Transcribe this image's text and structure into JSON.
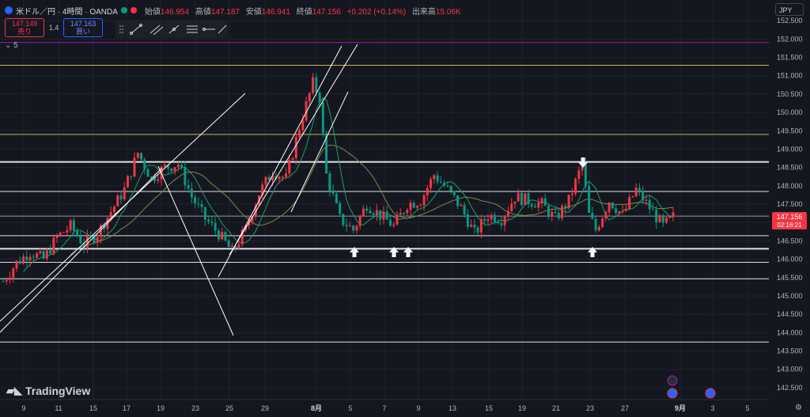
{
  "header": {
    "symbol": "米ドル／円 · 4時間 · OANDA",
    "open_label": "始値",
    "open": "146.954",
    "high_label": "高値",
    "high": "147.187",
    "low_label": "安値",
    "low": "146.941",
    "close_label": "終値",
    "close": "147.156",
    "change": "+0.202 (+0.14%)",
    "volume_label": "出来高",
    "volume": "15.06K"
  },
  "trade": {
    "sell_price": "147.149",
    "sell_label": "売り",
    "spread": "1.4",
    "buy_price": "147.163",
    "buy_label": "買い"
  },
  "collapse_label": "5",
  "currency": "JPY",
  "logo_text": "TradingView",
  "colors": {
    "background": "#151720",
    "bull": "#f23645",
    "bear": "#089981",
    "ma_fast": "#1b9e6e",
    "ma_slow": "#7c8a4c",
    "purple_level": "#8e24aa",
    "yellow_level": "#c9b458"
  },
  "chart_data": {
    "type": "candlestick",
    "timeframe": "4時間",
    "ylim": [
      142.25,
      153.0
    ],
    "y_ticks": [
      "152.500",
      "152.000",
      "151.500",
      "151.000",
      "150.500",
      "150.000",
      "149.500",
      "149.000",
      "148.500",
      "148.000",
      "147.500",
      "147.000",
      "146.500",
      "146.000",
      "145.500",
      "145.000",
      "144.500",
      "144.000",
      "143.500",
      "143.000",
      "142.500"
    ],
    "x_ticks": [
      "9",
      "11",
      "15",
      "17",
      "19",
      "23",
      "25",
      "29",
      "8月",
      "5",
      "7",
      "9",
      "13",
      "15",
      "19",
      "21",
      "23",
      "27",
      "9月",
      "3",
      "5"
    ],
    "levels": [
      {
        "value": 151.906,
        "label": "151.906",
        "color": "purple",
        "width": 1
      },
      {
        "value": 151.285,
        "label": "151.285",
        "color": "yellow",
        "width": 1
      },
      {
        "value": 149.402,
        "label": "149.402",
        "color": "yellow",
        "width": 1
      },
      {
        "value": 148.652,
        "label": "148.652",
        "color": "white",
        "width": 2
      },
      {
        "value": 147.846,
        "label": "147.846",
        "color": "white",
        "width": 1
      },
      {
        "value": 147.175,
        "label": "147.175",
        "color": "gray",
        "width": 1
      },
      {
        "value": 146.64,
        "label": "146.640",
        "color": "white",
        "width": 1
      },
      {
        "value": 146.286,
        "label": "146.286",
        "color": "white",
        "width": 2
      },
      {
        "value": 145.915,
        "label": "145.915",
        "color": "white",
        "width": 1
      },
      {
        "value": 145.466,
        "label": "145.466",
        "color": "white",
        "width": 1
      },
      {
        "value": 143.742,
        "label": "143.742",
        "color": "white",
        "width": 1
      }
    ],
    "current_price": "147.156",
    "countdown": "02:16:21",
    "close_path": [
      {
        "x": 0,
        "y": 145.4
      },
      {
        "x": 4,
        "y": 145.9
      },
      {
        "x": 8,
        "y": 146.2
      },
      {
        "x": 12,
        "y": 146.0
      },
      {
        "x": 16,
        "y": 146.6
      },
      {
        "x": 20,
        "y": 146.9
      },
      {
        "x": 24,
        "y": 146.4
      },
      {
        "x": 28,
        "y": 146.7
      },
      {
        "x": 32,
        "y": 147.3
      },
      {
        "x": 36,
        "y": 147.9
      },
      {
        "x": 40,
        "y": 148.9
      },
      {
        "x": 44,
        "y": 148.2
      },
      {
        "x": 48,
        "y": 148.5
      },
      {
        "x": 52,
        "y": 148.6
      },
      {
        "x": 56,
        "y": 147.7
      },
      {
        "x": 60,
        "y": 147.1
      },
      {
        "x": 64,
        "y": 146.7
      },
      {
        "x": 68,
        "y": 146.2
      },
      {
        "x": 72,
        "y": 146.8
      },
      {
        "x": 76,
        "y": 147.8
      },
      {
        "x": 80,
        "y": 148.4
      },
      {
        "x": 84,
        "y": 148.2
      },
      {
        "x": 88,
        "y": 149.6
      },
      {
        "x": 92,
        "y": 150.8
      },
      {
        "x": 94,
        "y": 150.4
      },
      {
        "x": 96,
        "y": 148.3
      },
      {
        "x": 100,
        "y": 147.1
      },
      {
        "x": 104,
        "y": 146.8
      },
      {
        "x": 108,
        "y": 147.5
      },
      {
        "x": 112,
        "y": 147.2
      },
      {
        "x": 116,
        "y": 146.9
      },
      {
        "x": 120,
        "y": 147.5
      },
      {
        "x": 124,
        "y": 147.6
      },
      {
        "x": 128,
        "y": 148.3
      },
      {
        "x": 132,
        "y": 147.9
      },
      {
        "x": 136,
        "y": 147.4
      },
      {
        "x": 140,
        "y": 146.7
      },
      {
        "x": 144,
        "y": 147.2
      },
      {
        "x": 148,
        "y": 147.1
      },
      {
        "x": 152,
        "y": 147.7
      },
      {
        "x": 156,
        "y": 147.6
      },
      {
        "x": 160,
        "y": 147.5
      },
      {
        "x": 164,
        "y": 147.1
      },
      {
        "x": 168,
        "y": 147.6
      },
      {
        "x": 172,
        "y": 148.6
      },
      {
        "x": 174,
        "y": 147.2
      },
      {
        "x": 176,
        "y": 146.8
      },
      {
        "x": 180,
        "y": 147.6
      },
      {
        "x": 184,
        "y": 147.2
      },
      {
        "x": 188,
        "y": 147.9
      },
      {
        "x": 192,
        "y": 147.4
      },
      {
        "x": 196,
        "y": 146.9
      },
      {
        "x": 199,
        "y": 147.156
      }
    ]
  }
}
